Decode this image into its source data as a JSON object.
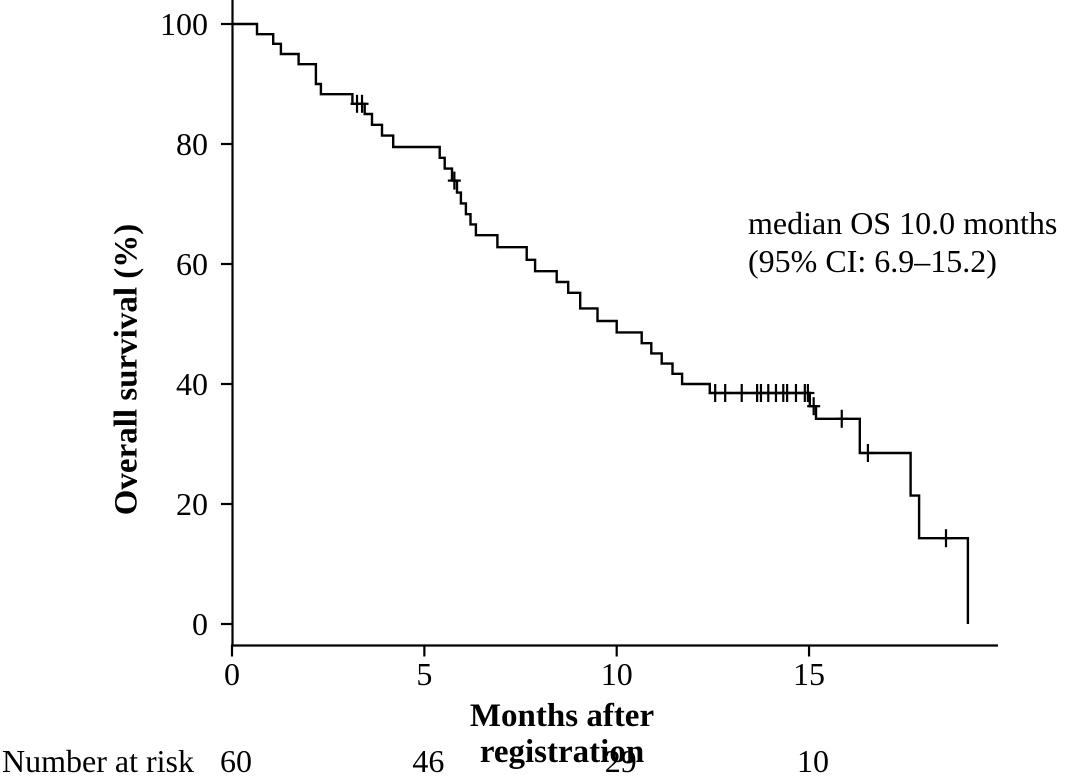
{
  "figure": {
    "background_color": "#ffffff",
    "line_color": "#000000",
    "text_color": "#000000"
  },
  "chart_data": {
    "type": "line",
    "subtype": "kaplan-meier-step-curve",
    "title": "",
    "xlabel": "Months after registration",
    "ylabel": "Overall survival (%)",
    "xlim": [
      0,
      19.9
    ],
    "ylim": [
      0,
      100
    ],
    "x_ticks": [
      0,
      5,
      10,
      15
    ],
    "y_ticks": [
      0,
      20,
      40,
      60,
      80,
      100
    ],
    "grid": false,
    "legend": false,
    "annotation_lines": [
      "median OS 10.0 months",
      "(95% CI: 6.9–15.2)"
    ],
    "median_os_months": 10.0,
    "ci_95": [
      6.9,
      15.2
    ],
    "series": [
      {
        "name": "Overall survival",
        "steps": [
          [
            0,
            100
          ],
          [
            0.65,
            98.3
          ],
          [
            1.07,
            96.7
          ],
          [
            1.27,
            95.0
          ],
          [
            1.73,
            93.3
          ],
          [
            2.18,
            90.0
          ],
          [
            2.31,
            88.3
          ],
          [
            3.13,
            86.7
          ],
          [
            3.45,
            85.0
          ],
          [
            3.64,
            83.2
          ],
          [
            3.9,
            81.4
          ],
          [
            4.19,
            79.5
          ],
          [
            5.4,
            77.7
          ],
          [
            5.53,
            75.9
          ],
          [
            5.72,
            73.9
          ],
          [
            5.85,
            71.9
          ],
          [
            5.95,
            70.1
          ],
          [
            6.08,
            68.3
          ],
          [
            6.2,
            66.6
          ],
          [
            6.34,
            64.8
          ],
          [
            6.9,
            62.8
          ],
          [
            7.66,
            60.7
          ],
          [
            7.88,
            58.8
          ],
          [
            8.44,
            57.0
          ],
          [
            8.74,
            55.2
          ],
          [
            9.05,
            52.6
          ],
          [
            9.5,
            50.5
          ],
          [
            10.0,
            48.6
          ],
          [
            10.65,
            46.8
          ],
          [
            10.9,
            45.1
          ],
          [
            11.17,
            43.4
          ],
          [
            11.45,
            41.7
          ],
          [
            11.7,
            40.0
          ],
          [
            12.42,
            38.5
          ],
          [
            15.02,
            36.3
          ],
          [
            15.18,
            34.2
          ],
          [
            16.32,
            28.5
          ],
          [
            17.64,
            21.4
          ],
          [
            17.86,
            14.3
          ],
          [
            19.13,
            0
          ]
        ],
        "censor_marks": [
          [
            3.25,
            86.7
          ],
          [
            3.38,
            86.7
          ],
          [
            5.78,
            73.9
          ],
          [
            12.56,
            38.5
          ],
          [
            12.82,
            38.5
          ],
          [
            13.25,
            38.5
          ],
          [
            13.65,
            38.5
          ],
          [
            13.75,
            38.5
          ],
          [
            13.94,
            38.5
          ],
          [
            14.14,
            38.5
          ],
          [
            14.33,
            38.5
          ],
          [
            14.43,
            38.5
          ],
          [
            14.66,
            38.5
          ],
          [
            14.89,
            38.5
          ],
          [
            14.97,
            38.5
          ],
          [
            15.12,
            36.3
          ],
          [
            15.85,
            34.2
          ],
          [
            16.53,
            28.5
          ],
          [
            18.56,
            14.3
          ]
        ]
      }
    ],
    "number_at_risk": {
      "label": "Number at risk",
      "times": [
        0,
        5,
        10,
        15
      ],
      "values": [
        60,
        46,
        29,
        10
      ]
    }
  }
}
